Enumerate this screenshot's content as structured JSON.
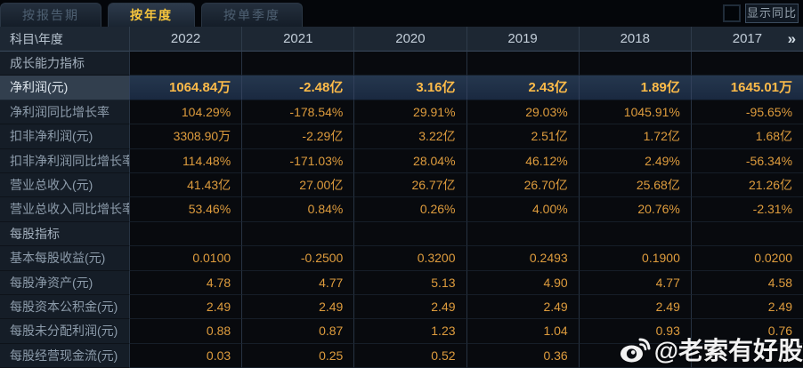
{
  "tabs": [
    {
      "label": "按报告期",
      "active": false
    },
    {
      "label": "按年度",
      "active": true
    },
    {
      "label": "按单季度",
      "active": false
    }
  ],
  "controls": {
    "show_yoy_label": "显示同比",
    "checkbox_checked": false
  },
  "table": {
    "corner_label": "科目\\年度",
    "years": [
      "2022",
      "2021",
      "2020",
      "2019",
      "2018",
      "2017"
    ],
    "more_icon": "»",
    "rows": [
      {
        "type": "section",
        "label": "成长能力指标",
        "values": [
          "",
          "",
          "",
          "",
          "",
          ""
        ]
      },
      {
        "type": "highlight",
        "label": "净利润(元)",
        "values": [
          "1064.84万",
          "-2.48亿",
          "3.16亿",
          "2.43亿",
          "1.89亿",
          "1645.01万"
        ]
      },
      {
        "type": "data",
        "label": "净利润同比增长率",
        "values": [
          "104.29%",
          "-178.54%",
          "29.91%",
          "29.03%",
          "1045.91%",
          "-95.65%"
        ]
      },
      {
        "type": "data",
        "label": "扣非净利润(元)",
        "values": [
          "3308.90万",
          "-2.29亿",
          "3.22亿",
          "2.51亿",
          "1.72亿",
          "1.68亿"
        ]
      },
      {
        "type": "data",
        "label": "扣非净利润同比增长率",
        "values": [
          "114.48%",
          "-171.03%",
          "28.04%",
          "46.12%",
          "2.49%",
          "-56.34%"
        ]
      },
      {
        "type": "data",
        "label": "营业总收入(元)",
        "values": [
          "41.43亿",
          "27.00亿",
          "26.77亿",
          "26.70亿",
          "25.68亿",
          "21.26亿"
        ]
      },
      {
        "type": "data",
        "label": "营业总收入同比增长率",
        "values": [
          "53.46%",
          "0.84%",
          "0.26%",
          "4.00%",
          "20.76%",
          "-2.31%"
        ]
      },
      {
        "type": "section",
        "label": "每股指标",
        "values": [
          "",
          "",
          "",
          "",
          "",
          ""
        ]
      },
      {
        "type": "data",
        "label": "基本每股收益(元)",
        "values": [
          "0.0100",
          "-0.2500",
          "0.3200",
          "0.2493",
          "0.1900",
          "0.0200"
        ]
      },
      {
        "type": "data",
        "label": "每股净资产(元)",
        "values": [
          "4.78",
          "4.77",
          "5.13",
          "4.90",
          "4.77",
          "4.58"
        ]
      },
      {
        "type": "data",
        "label": "每股资本公积金(元)",
        "values": [
          "2.49",
          "2.49",
          "2.49",
          "2.49",
          "2.49",
          "2.49"
        ]
      },
      {
        "type": "data",
        "label": "每股未分配利润(元)",
        "values": [
          "0.88",
          "0.87",
          "1.23",
          "1.04",
          "0.93",
          "0.76"
        ]
      },
      {
        "type": "data",
        "label": "每股经营现金流(元)",
        "values": [
          "0.03",
          "0.25",
          "0.52",
          "0.36",
          "",
          ""
        ]
      }
    ]
  },
  "watermark": {
    "text": "@老索有好股",
    "icon": "weibo-icon"
  },
  "colors": {
    "accent_gold": "#f6c53d",
    "value_orange": "#de9c3d",
    "highlight_value_gold": "#fdbb49",
    "header_bg": "#1d2733",
    "label_col_bg": "#151d27",
    "highlight_row_bg": "#25374e",
    "page_bg": "#0a0d12"
  }
}
